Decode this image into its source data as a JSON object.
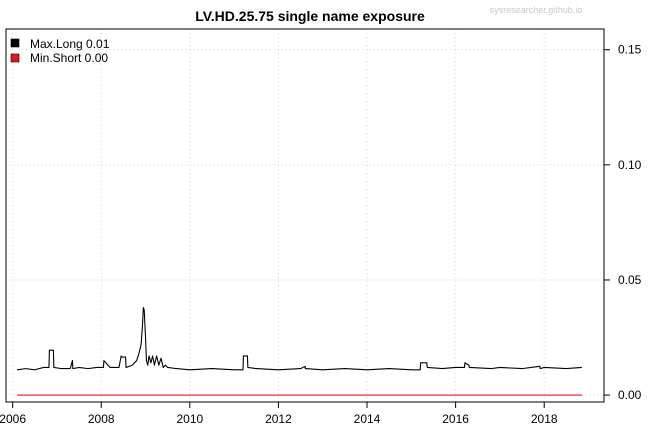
{
  "chart_data": {
    "type": "line",
    "title": "LV.HD.25.75 single name exposure",
    "watermark": "sysresearcher.github.io",
    "xlabel": "",
    "ylabel": "",
    "xlim": [
      2005.85,
      2019.35
    ],
    "ylim": [
      -0.003,
      0.159
    ],
    "x_ticks": [
      2006,
      2008,
      2010,
      2012,
      2014,
      2016,
      2018
    ],
    "x_tick_labels": [
      "2006",
      "2008",
      "2010",
      "2012",
      "2014",
      "2016",
      "2018"
    ],
    "y_ticks": [
      0.0,
      0.05,
      0.1,
      0.15
    ],
    "y_tick_labels": [
      "0.00",
      "0.05",
      "0.10",
      "0.15"
    ],
    "y_axis_side": "right",
    "grid": true,
    "legend_position": "top-left",
    "legend": [
      {
        "label": "Max.Long 0.01",
        "color": "#000000"
      },
      {
        "label": "Min.Short 0.00",
        "color": "#e31a1c"
      }
    ],
    "series": [
      {
        "name": "Max.Long",
        "color": "#000000",
        "x": [
          2006.1,
          2006.3,
          2006.5,
          2006.7,
          2006.82,
          2006.83,
          2006.92,
          2006.93,
          2007.1,
          2007.3,
          2007.35,
          2007.36,
          2007.5,
          2007.7,
          2007.9,
          2008.05,
          2008.06,
          2008.2,
          2008.4,
          2008.45,
          2008.46,
          2008.55,
          2008.56,
          2008.7,
          2008.8,
          2008.85,
          2008.9,
          2008.93,
          2008.95,
          2008.97,
          2009.0,
          2009.02,
          2009.05,
          2009.08,
          2009.12,
          2009.16,
          2009.2,
          2009.25,
          2009.3,
          2009.35,
          2009.4,
          2009.45,
          2009.5,
          2009.7,
          2010.0,
          2010.5,
          2011.0,
          2011.2,
          2011.21,
          2011.3,
          2011.31,
          2011.5,
          2012.0,
          2012.5,
          2012.6,
          2012.61,
          2013.0,
          2013.5,
          2014.0,
          2014.5,
          2015.0,
          2015.2,
          2015.21,
          2015.35,
          2015.36,
          2015.7,
          2016.0,
          2016.2,
          2016.21,
          2016.3,
          2016.31,
          2016.8,
          2017.0,
          2017.5,
          2017.9,
          2017.91,
          2018.0,
          2018.5,
          2018.85
        ],
        "y": [
          0.011,
          0.0115,
          0.011,
          0.012,
          0.012,
          0.0195,
          0.0195,
          0.012,
          0.0115,
          0.0115,
          0.015,
          0.0115,
          0.012,
          0.0115,
          0.012,
          0.012,
          0.015,
          0.012,
          0.012,
          0.017,
          0.0165,
          0.0165,
          0.012,
          0.013,
          0.015,
          0.018,
          0.022,
          0.03,
          0.038,
          0.037,
          0.025,
          0.015,
          0.013,
          0.017,
          0.014,
          0.017,
          0.013,
          0.017,
          0.013,
          0.016,
          0.012,
          0.013,
          0.012,
          0.0115,
          0.011,
          0.0115,
          0.011,
          0.011,
          0.017,
          0.017,
          0.012,
          0.0115,
          0.011,
          0.0115,
          0.0125,
          0.0115,
          0.011,
          0.0115,
          0.011,
          0.0115,
          0.011,
          0.011,
          0.014,
          0.014,
          0.012,
          0.0115,
          0.012,
          0.012,
          0.014,
          0.013,
          0.012,
          0.0115,
          0.012,
          0.0115,
          0.0125,
          0.0115,
          0.012,
          0.0115,
          0.012
        ]
      },
      {
        "name": "Min.Short",
        "color": "#e31a1c",
        "x": [
          2006.1,
          2018.85
        ],
        "y": [
          0.0,
          0.0
        ]
      }
    ]
  }
}
